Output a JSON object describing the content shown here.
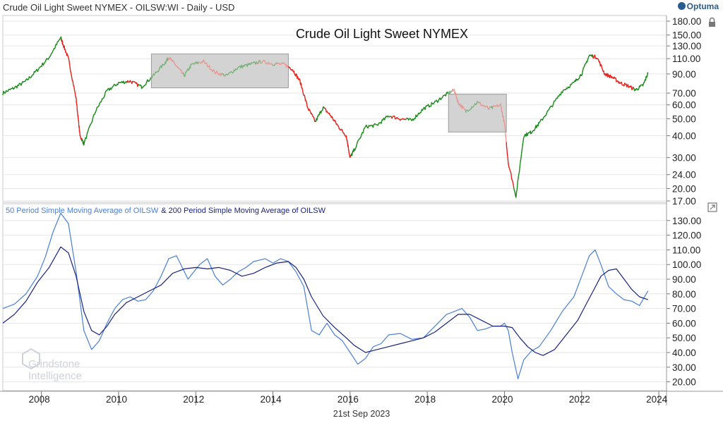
{
  "header": {
    "title": "Crude Oil Light Sweet NYMEX - OILSW:WI - Daily - USD",
    "brand": "Optuma"
  },
  "footer": {
    "date": "21st Sep 2023"
  },
  "watermark": {
    "line1": "Grindstone",
    "line2": "Intelligence"
  },
  "colors": {
    "up": "#1a8a1a",
    "down": "#e8201a",
    "up_faded": "#7bb37b",
    "down_faded": "#e79a95",
    "highlight": "#d3d3d3",
    "sma50": "#4a7fd4",
    "sma200": "#1a237e",
    "grid": "#e6e6e6"
  },
  "chart_data": [
    {
      "type": "line",
      "title": "Crude Oil Light Sweet NYMEX",
      "yscale": "log",
      "ylim": [
        17,
        180
      ],
      "xlim": [
        2007.0,
        2024.2
      ],
      "yticks": [
        {
          "value": 180,
          "label": "180.00"
        },
        {
          "value": 150,
          "label": "150.00"
        },
        {
          "value": 130,
          "label": "130.00"
        },
        {
          "value": 110,
          "label": "110.00"
        },
        {
          "value": 90,
          "label": "90.00"
        },
        {
          "value": 70,
          "label": "70.00"
        },
        {
          "value": 60,
          "label": "60.00"
        },
        {
          "value": 50,
          "label": "50.00"
        },
        {
          "value": 40,
          "label": "40.00"
        },
        {
          "value": 30,
          "label": "30.00"
        },
        {
          "value": 24,
          "label": "24.00"
        },
        {
          "value": 20,
          "label": "20.00"
        },
        {
          "value": 17,
          "label": "17.00"
        }
      ],
      "highlight_ranges": [
        {
          "x": [
            2010.85,
            2014.4
          ],
          "y": [
            75,
            117
          ]
        },
        {
          "x": [
            2018.55,
            2020.05
          ],
          "y": [
            42,
            69
          ]
        }
      ],
      "series": [
        {
          "x": [
            2007.0,
            2007.3,
            2007.6,
            2007.9,
            2008.2,
            2008.5,
            2008.55,
            2008.7,
            2008.9,
            2009.0,
            2009.1,
            2009.4,
            2009.7,
            2010.0,
            2010.3,
            2010.6,
            2010.9,
            2011.2,
            2011.3,
            2011.5,
            2011.7,
            2011.9,
            2012.2,
            2012.5,
            2012.8,
            2013.1,
            2013.4,
            2013.7,
            2014.0,
            2014.3,
            2014.5,
            2014.7,
            2014.9,
            2015.1,
            2015.3,
            2015.5,
            2015.7,
            2015.9,
            2016.0,
            2016.1,
            2016.4,
            2016.7,
            2017.0,
            2017.3,
            2017.6,
            2017.9,
            2018.2,
            2018.5,
            2018.7,
            2018.8,
            2019.0,
            2019.3,
            2019.6,
            2019.9,
            2020.0,
            2020.1,
            2020.3,
            2020.5,
            2020.7,
            2020.9,
            2021.2,
            2021.5,
            2021.8,
            2022.0,
            2022.2,
            2022.4,
            2022.6,
            2022.8,
            2023.0,
            2023.2,
            2023.4,
            2023.6,
            2023.72
          ],
          "y": [
            70,
            75,
            82,
            95,
            112,
            145,
            135,
            110,
            65,
            40,
            36,
            55,
            72,
            80,
            82,
            76,
            88,
            104,
            112,
            100,
            88,
            102,
            106,
            92,
            88,
            98,
            102,
            106,
            103,
            102,
            96,
            82,
            58,
            48,
            58,
            52,
            45,
            40,
            30,
            33,
            45,
            46,
            52,
            50,
            49,
            57,
            62,
            69,
            73,
            62,
            55,
            62,
            57,
            60,
            47,
            28,
            18,
            40,
            42,
            47,
            58,
            72,
            80,
            90,
            115,
            112,
            90,
            86,
            80,
            77,
            73,
            78,
            91
          ]
        }
      ]
    },
    {
      "type": "line",
      "title": "",
      "ylim": [
        15,
        140
      ],
      "xlim": [
        2007.0,
        2024.2
      ],
      "yticks": [
        {
          "value": 130,
          "label": "130.00"
        },
        {
          "value": 120,
          "label": "120.00"
        },
        {
          "value": 110,
          "label": "110.00"
        },
        {
          "value": 100,
          "label": "100.00"
        },
        {
          "value": 90,
          "label": "90.00"
        },
        {
          "value": 80,
          "label": "80.00"
        },
        {
          "value": 70,
          "label": "70.00"
        },
        {
          "value": 60,
          "label": "60.00"
        },
        {
          "value": 50,
          "label": "50.00"
        },
        {
          "value": 40,
          "label": "40.00"
        },
        {
          "value": 30,
          "label": "30.00"
        },
        {
          "value": 20,
          "label": "20.00"
        }
      ],
      "legend": [
        "50 Period Simple Moving Average of OILSW",
        "& 200 Period Simple Moving Average of OILSW"
      ],
      "series": [
        {
          "name": "50 Period Simple Moving Average of OILSW",
          "x": [
            2007.0,
            2007.3,
            2007.6,
            2007.9,
            2008.1,
            2008.3,
            2008.5,
            2008.7,
            2008.9,
            2009.1,
            2009.3,
            2009.5,
            2009.7,
            2009.9,
            2010.1,
            2010.3,
            2010.5,
            2010.7,
            2010.9,
            2011.1,
            2011.3,
            2011.5,
            2011.8,
            2012.1,
            2012.3,
            2012.5,
            2012.7,
            2012.9,
            2013.1,
            2013.3,
            2013.5,
            2013.8,
            2014.0,
            2014.2,
            2014.4,
            2014.6,
            2014.8,
            2015.0,
            2015.2,
            2015.4,
            2015.6,
            2015.8,
            2016.0,
            2016.2,
            2016.4,
            2016.6,
            2016.8,
            2017.0,
            2017.3,
            2017.6,
            2017.9,
            2018.2,
            2018.5,
            2018.7,
            2018.9,
            2019.1,
            2019.3,
            2019.5,
            2019.7,
            2019.9,
            2020.0,
            2020.1,
            2020.2,
            2020.35,
            2020.5,
            2020.7,
            2020.9,
            2021.2,
            2021.5,
            2021.8,
            2022.0,
            2022.2,
            2022.35,
            2022.5,
            2022.7,
            2022.9,
            2023.1,
            2023.3,
            2023.5,
            2023.72
          ],
          "y": [
            70,
            73,
            80,
            92,
            105,
            122,
            135,
            128,
            95,
            55,
            42,
            48,
            60,
            70,
            76,
            78,
            75,
            76,
            82,
            92,
            104,
            106,
            90,
            100,
            104,
            92,
            86,
            90,
            95,
            98,
            102,
            104,
            101,
            104,
            102,
            95,
            85,
            55,
            52,
            60,
            52,
            48,
            40,
            32,
            36,
            44,
            46,
            52,
            53,
            49,
            50,
            58,
            66,
            68,
            70,
            64,
            55,
            56,
            58,
            58,
            60,
            55,
            40,
            22,
            35,
            41,
            44,
            55,
            68,
            78,
            92,
            106,
            110,
            100,
            85,
            80,
            76,
            75,
            72,
            82
          ]
        },
        {
          "name": "& 200 Period Simple Moving Average of OILSW",
          "x": [
            2007.0,
            2007.3,
            2007.6,
            2007.9,
            2008.2,
            2008.5,
            2008.7,
            2008.9,
            2009.1,
            2009.3,
            2009.5,
            2009.7,
            2009.9,
            2010.2,
            2010.5,
            2010.8,
            2011.1,
            2011.4,
            2011.7,
            2012.0,
            2012.3,
            2012.6,
            2012.9,
            2013.2,
            2013.5,
            2013.8,
            2014.1,
            2014.4,
            2014.6,
            2014.8,
            2015.0,
            2015.3,
            2015.6,
            2015.9,
            2016.1,
            2016.4,
            2016.7,
            2017.0,
            2017.3,
            2017.6,
            2017.9,
            2018.2,
            2018.5,
            2018.8,
            2019.1,
            2019.4,
            2019.7,
            2020.0,
            2020.2,
            2020.4,
            2020.6,
            2020.8,
            2021.0,
            2021.3,
            2021.6,
            2021.9,
            2022.1,
            2022.3,
            2022.5,
            2022.7,
            2022.9,
            2023.1,
            2023.3,
            2023.5,
            2023.72
          ],
          "y": [
            60,
            66,
            75,
            88,
            98,
            112,
            108,
            92,
            68,
            55,
            52,
            58,
            66,
            74,
            78,
            82,
            86,
            94,
            97,
            98,
            97,
            98,
            96,
            92,
            94,
            98,
            101,
            102,
            98,
            90,
            78,
            65,
            57,
            50,
            45,
            40,
            42,
            44,
            46,
            48,
            50,
            54,
            60,
            66,
            66,
            62,
            58,
            58,
            57,
            50,
            44,
            40,
            38,
            42,
            52,
            62,
            72,
            82,
            92,
            96,
            97,
            90,
            83,
            78,
            76
          ]
        }
      ]
    }
  ],
  "xaxis": {
    "ticks": [
      {
        "value": 2008,
        "label": "2008"
      },
      {
        "value": 2010,
        "label": "2010"
      },
      {
        "value": 2012,
        "label": "2012"
      },
      {
        "value": 2014,
        "label": "2014"
      },
      {
        "value": 2016,
        "label": "2016"
      },
      {
        "value": 2018,
        "label": "2018"
      },
      {
        "value": 2020,
        "label": "2020"
      },
      {
        "value": 2022,
        "label": "2022"
      },
      {
        "value": 2024,
        "label": "2024"
      }
    ]
  }
}
